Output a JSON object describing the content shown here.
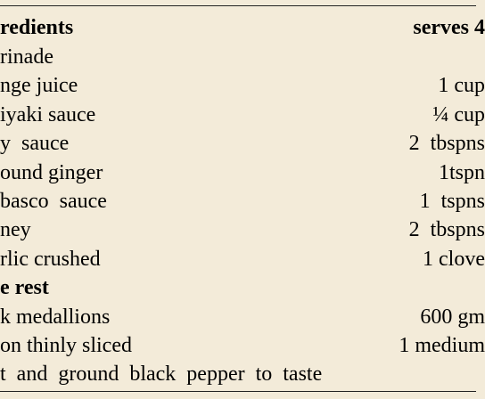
{
  "table": {
    "header": [
      "redients",
      "serves 4"
    ],
    "rows": [
      [
        "rinade"
      ],
      [
        "nge juice",
        "1 cup"
      ],
      [
        "iyaki sauce",
        "¼ cup"
      ],
      [
        "y  sauce",
        "2  tbspns"
      ],
      [
        "ound ginger",
        "1tspn"
      ],
      [
        "basco  sauce",
        "1  tspns"
      ],
      [
        "ney",
        "2  tbspns"
      ],
      [
        "rlic crushed",
        "1 clove"
      ],
      [
        "e rest"
      ],
      [
        "k medallions",
        "600 gm"
      ],
      [
        "on thinly sliced",
        "1 medium"
      ],
      [
        "t  and  ground  black  pepper  to  taste"
      ]
    ]
  }
}
